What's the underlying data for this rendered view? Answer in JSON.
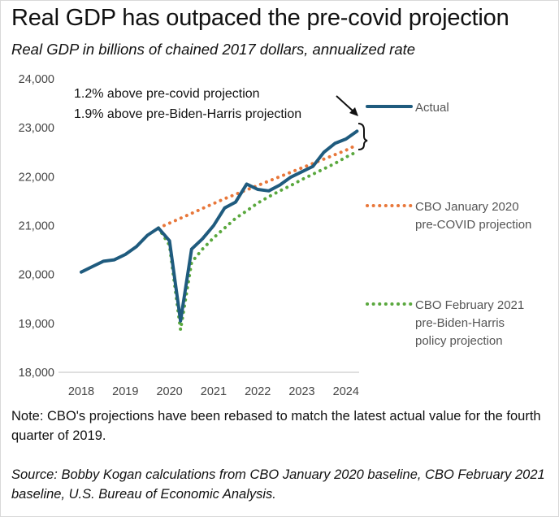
{
  "title": "Real GDP has outpaced the pre-covid projection",
  "subtitle": "Real GDP in billions of chained 2017 dollars, annualized rate",
  "note": "Note: CBO's projections have been rebased to match the latest actual value for the fourth quarter of 2019.",
  "source": "Source: Bobby Kogan calculations from CBO January 2020 baseline, CBO February 2021 baseline, U.S. Bureau of Economic Analysis.",
  "chart_data": {
    "type": "line",
    "ylim": [
      18000,
      24000
    ],
    "y_ticks": [
      "18,000",
      "19,000",
      "20,000",
      "21,000",
      "22,000",
      "23,000",
      "24,000"
    ],
    "x_ticks": [
      "2018",
      "2019",
      "2020",
      "2021",
      "2022",
      "2023",
      "2024"
    ],
    "grid": false,
    "legend_position": "right",
    "annotations": [
      "1.2% above pre-covid projection",
      "1.9% above pre-Biden-Harris projection"
    ],
    "series": [
      {
        "name": "Actual",
        "color": "#1f5b7e",
        "style": "solid",
        "x": [
          "2018-01",
          "2018-04",
          "2018-07",
          "2018-10",
          "2019-01",
          "2019-04",
          "2019-07",
          "2019-10",
          "2020-01",
          "2020-04",
          "2020-07",
          "2020-10",
          "2021-01",
          "2021-04",
          "2021-07",
          "2021-10",
          "2022-01",
          "2022-04",
          "2022-07",
          "2022-10",
          "2023-01",
          "2023-04",
          "2023-07",
          "2023-10",
          "2024-01",
          "2024-04"
        ],
        "values": [
          20050,
          20160,
          20270,
          20300,
          20410,
          20570,
          20800,
          20950,
          20690,
          19050,
          20520,
          20730,
          21000,
          21360,
          21480,
          21850,
          21740,
          21710,
          21830,
          21990,
          22100,
          22210,
          22500,
          22680,
          22770,
          22930
        ]
      },
      {
        "name": "CBO January 2020 pre-COVID projection",
        "color": "#e8773a",
        "style": "dotted",
        "x": [
          "2019-10",
          "2020-01",
          "2020-04",
          "2020-07",
          "2020-10",
          "2021-01",
          "2021-04",
          "2021-07",
          "2021-10",
          "2022-01",
          "2022-04",
          "2022-07",
          "2022-10",
          "2023-01",
          "2023-04",
          "2023-07",
          "2023-10",
          "2024-01",
          "2024-04"
        ],
        "values": [
          20950,
          21050,
          21150,
          21250,
          21350,
          21450,
          21550,
          21640,
          21730,
          21820,
          21910,
          22000,
          22090,
          22180,
          22270,
          22360,
          22450,
          22540,
          22650
        ]
      },
      {
        "name": "CBO February 2021 pre-Biden-Harris policy projection",
        "color": "#5aa83e",
        "style": "dotted",
        "x": [
          "2019-10",
          "2020-01",
          "2020-04",
          "2020-07",
          "2020-10",
          "2021-01",
          "2021-04",
          "2021-07",
          "2021-10",
          "2022-01",
          "2022-04",
          "2022-07",
          "2022-10",
          "2023-01",
          "2023-04",
          "2023-07",
          "2023-10",
          "2024-01",
          "2024-04"
        ],
        "values": [
          20950,
          20600,
          18870,
          20250,
          20520,
          20750,
          20950,
          21150,
          21300,
          21460,
          21590,
          21710,
          21820,
          21940,
          22050,
          22160,
          22270,
          22400,
          22510
        ]
      }
    ]
  }
}
